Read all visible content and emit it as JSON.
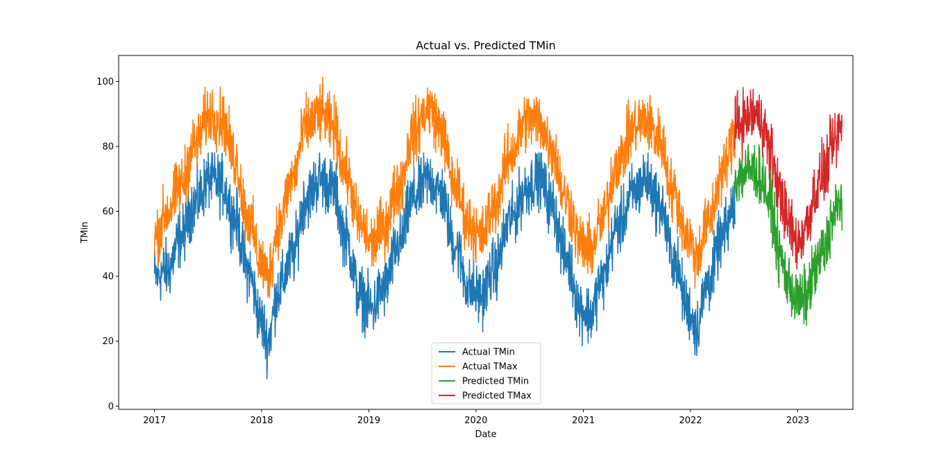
{
  "chart_data": {
    "type": "line",
    "title": "Actual vs. Predicted TMin",
    "xlabel": "Date",
    "ylabel": "TMin",
    "xlim": [
      "2016-09-01",
      "2023-07-08"
    ],
    "ylim": [
      -1,
      108
    ],
    "x_ticks": [
      "2017",
      "2018",
      "2019",
      "2020",
      "2021",
      "2022",
      "2023"
    ],
    "y_ticks": [
      0,
      20,
      40,
      60,
      80,
      100
    ],
    "grid": false,
    "legend_position": "bottom-center",
    "series": [
      {
        "name": "Actual TMin",
        "color": "#1f77b4",
        "start": "2017-01-01",
        "end": "2022-06-01",
        "min_value": 4,
        "max_value": 78,
        "anchors": [
          [
            "2017-01-01",
            40
          ],
          [
            "2017-02-15",
            42
          ],
          [
            "2017-04-01",
            52
          ],
          [
            "2017-05-15",
            62
          ],
          [
            "2017-07-10",
            70
          ],
          [
            "2017-08-20",
            68
          ],
          [
            "2017-10-01",
            58
          ],
          [
            "2017-11-15",
            42
          ],
          [
            "2018-01-01",
            26
          ],
          [
            "2018-01-20",
            20
          ],
          [
            "2018-03-01",
            36
          ],
          [
            "2018-04-15",
            46
          ],
          [
            "2018-06-01",
            64
          ],
          [
            "2018-07-20",
            70
          ],
          [
            "2018-09-01",
            67
          ],
          [
            "2018-10-15",
            52
          ],
          [
            "2018-12-01",
            34
          ],
          [
            "2019-01-10",
            30
          ],
          [
            "2019-02-20",
            36
          ],
          [
            "2019-04-15",
            50
          ],
          [
            "2019-06-01",
            64
          ],
          [
            "2019-07-25",
            70
          ],
          [
            "2019-09-01",
            66
          ],
          [
            "2019-10-20",
            50
          ],
          [
            "2019-12-10",
            36
          ],
          [
            "2020-01-20",
            34
          ],
          [
            "2020-03-01",
            42
          ],
          [
            "2020-05-01",
            58
          ],
          [
            "2020-06-20",
            67
          ],
          [
            "2020-08-01",
            71
          ],
          [
            "2020-09-15",
            62
          ],
          [
            "2020-11-01",
            46
          ],
          [
            "2020-12-25",
            30
          ],
          [
            "2021-01-25",
            28
          ],
          [
            "2021-03-01",
            38
          ],
          [
            "2021-05-01",
            56
          ],
          [
            "2021-06-25",
            66
          ],
          [
            "2021-08-01",
            70
          ],
          [
            "2021-09-20",
            62
          ],
          [
            "2021-11-01",
            46
          ],
          [
            "2021-12-25",
            30
          ],
          [
            "2022-01-20",
            24
          ],
          [
            "2022-03-01",
            38
          ],
          [
            "2022-04-20",
            52
          ],
          [
            "2022-06-01",
            62
          ]
        ]
      },
      {
        "name": "Actual TMax",
        "color": "#ff7f0e",
        "start": "2017-01-01",
        "end": "2022-06-01",
        "min_value": 27,
        "max_value": 102,
        "anchors": [
          [
            "2017-01-01",
            52
          ],
          [
            "2017-02-15",
            60
          ],
          [
            "2017-04-01",
            68
          ],
          [
            "2017-05-15",
            80
          ],
          [
            "2017-07-10",
            90
          ],
          [
            "2017-08-20",
            88
          ],
          [
            "2017-10-01",
            76
          ],
          [
            "2017-11-15",
            58
          ],
          [
            "2018-01-01",
            44
          ],
          [
            "2018-01-20",
            40
          ],
          [
            "2018-03-01",
            56
          ],
          [
            "2018-04-15",
            70
          ],
          [
            "2018-06-01",
            86
          ],
          [
            "2018-07-20",
            90
          ],
          [
            "2018-09-01",
            86
          ],
          [
            "2018-10-15",
            72
          ],
          [
            "2018-12-01",
            56
          ],
          [
            "2019-01-10",
            50
          ],
          [
            "2019-02-20",
            55
          ],
          [
            "2019-04-15",
            68
          ],
          [
            "2019-06-01",
            84
          ],
          [
            "2019-07-25",
            92
          ],
          [
            "2019-09-01",
            86
          ],
          [
            "2019-10-20",
            68
          ],
          [
            "2019-12-10",
            56
          ],
          [
            "2020-01-20",
            52
          ],
          [
            "2020-03-01",
            62
          ],
          [
            "2020-05-01",
            78
          ],
          [
            "2020-06-20",
            88
          ],
          [
            "2020-08-01",
            88
          ],
          [
            "2020-09-15",
            80
          ],
          [
            "2020-11-01",
            64
          ],
          [
            "2020-12-25",
            50
          ],
          [
            "2021-01-25",
            48
          ],
          [
            "2021-03-01",
            56
          ],
          [
            "2021-05-01",
            76
          ],
          [
            "2021-06-25",
            86
          ],
          [
            "2021-08-01",
            88
          ],
          [
            "2021-09-20",
            82
          ],
          [
            "2021-11-01",
            66
          ],
          [
            "2021-12-25",
            52
          ],
          [
            "2022-01-20",
            46
          ],
          [
            "2022-03-01",
            56
          ],
          [
            "2022-04-20",
            72
          ],
          [
            "2022-06-01",
            84
          ]
        ]
      },
      {
        "name": "Predicted TMin",
        "color": "#2ca02c",
        "start": "2022-06-01",
        "end": "2023-06-01",
        "min_value": 17,
        "max_value": 82,
        "anchors": [
          [
            "2022-06-01",
            70
          ],
          [
            "2022-07-01",
            72
          ],
          [
            "2022-08-01",
            73
          ],
          [
            "2022-09-01",
            70
          ],
          [
            "2022-10-01",
            62
          ],
          [
            "2022-11-01",
            46
          ],
          [
            "2022-12-01",
            38
          ],
          [
            "2023-01-01",
            32
          ],
          [
            "2023-02-01",
            34
          ],
          [
            "2023-03-01",
            42
          ],
          [
            "2023-04-01",
            48
          ],
          [
            "2023-05-01",
            58
          ],
          [
            "2023-06-01",
            64
          ]
        ]
      },
      {
        "name": "Predicted TMax",
        "color": "#d62728",
        "start": "2022-06-01",
        "end": "2023-06-01",
        "min_value": 35,
        "max_value": 103,
        "anchors": [
          [
            "2022-06-01",
            86
          ],
          [
            "2022-07-01",
            88
          ],
          [
            "2022-08-01",
            90
          ],
          [
            "2022-09-01",
            88
          ],
          [
            "2022-10-01",
            78
          ],
          [
            "2022-11-01",
            66
          ],
          [
            "2022-12-01",
            56
          ],
          [
            "2023-01-01",
            50
          ],
          [
            "2023-02-01",
            56
          ],
          [
            "2023-03-01",
            66
          ],
          [
            "2023-04-01",
            72
          ],
          [
            "2023-05-01",
            80
          ],
          [
            "2023-06-01",
            86
          ]
        ]
      }
    ]
  }
}
